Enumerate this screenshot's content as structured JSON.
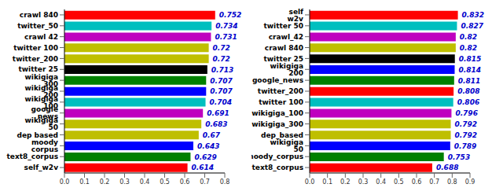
{
  "chart_data": [
    {
      "type": "bar",
      "orientation": "horizontal",
      "data_labels": true,
      "grid": false,
      "categories": [
        "crawl 840",
        "twitter_50",
        "crawl 42",
        "twitter 100",
        "twitter_200",
        "twitter 25",
        "wikigiga 300",
        "wikigiga 200",
        "wikigiga 100",
        "google news",
        "wikigiga 50",
        "dep based",
        "moody corpus",
        "text8_corpus",
        "self_w2v"
      ],
      "values": [
        0.752,
        0.734,
        0.731,
        0.72,
        0.72,
        0.713,
        0.707,
        0.707,
        0.704,
        0.691,
        0.683,
        0.67,
        0.643,
        0.629,
        0.614
      ],
      "colors": [
        "#ff0000",
        "#00bfbf",
        "#bf00bf",
        "#bfbf00",
        "#bfbf00",
        "#000000",
        "#008000",
        "#0000ff",
        "#00bfbf",
        "#bf00bf",
        "#bfbf00",
        "#bfbf00",
        "#0000ff",
        "#008000",
        "#ff0000"
      ],
      "xlim": [
        0,
        0.8
      ],
      "xticks": [
        {
          "value": 0,
          "label": "0.0"
        },
        0.1,
        0.2,
        0.3,
        0.4,
        0.5,
        0.6,
        0.7,
        0.8
      ]
    },
    {
      "type": "bar",
      "orientation": "horizontal",
      "data_labels": true,
      "grid": false,
      "categories": [
        "self w2v",
        "twitter 50",
        "crawl_42",
        "crawl 840",
        "twitter 25",
        "wikigiga 200",
        "google_news",
        "twitter_200",
        "twitter 100",
        "wikigiga_100",
        "wikigiga_300",
        "dep_based",
        "wikigiga 50",
        "moody_corpus",
        "text8_corpus"
      ],
      "values": [
        0.832,
        0.827,
        0.82,
        0.82,
        0.815,
        0.814,
        0.811,
        0.808,
        0.806,
        0.796,
        0.792,
        0.792,
        0.789,
        0.753,
        0.688
      ],
      "colors": [
        "#ff0000",
        "#00bfbf",
        "#bf00bf",
        "#bfbf00",
        "#000000",
        "#0000ff",
        "#008000",
        "#ff0000",
        "#00bfbf",
        "#bf00bf",
        "#bfbf00",
        "#bfbf00",
        "#0000ff",
        "#008000",
        "#ff0000"
      ],
      "xlim": [
        0,
        0.9
      ],
      "xticks": [
        {
          "value": 0,
          "label": "0.0"
        },
        0.1,
        0.2,
        0.3,
        0.4,
        0.5,
        0.6,
        0.7,
        0.8,
        0.9
      ]
    }
  ]
}
